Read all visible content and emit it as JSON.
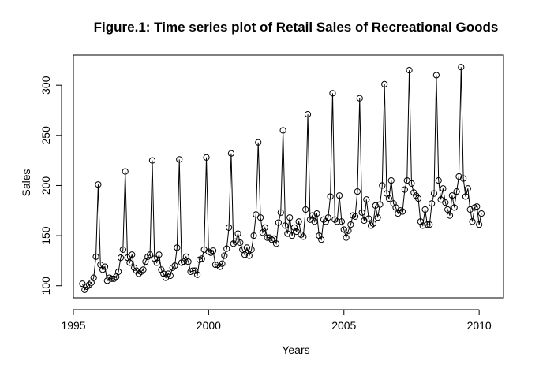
{
  "chart_data": {
    "type": "line",
    "title": "Figure.1: Time series plot of Retail Sales of Recreational Goods",
    "xlabel": "Years",
    "ylabel": "Sales",
    "xlim": [
      1995,
      2010.9
    ],
    "ylim": [
      88,
      330
    ],
    "x_ticks": [
      "1995",
      "2000",
      "2005",
      "2010"
    ],
    "y_ticks": [
      "100",
      "150",
      "200",
      "250",
      "300"
    ],
    "marker": "open-circle",
    "series": [
      {
        "start": 1995.333,
        "frequency": 12,
        "values": [
          102,
          96,
          99,
          101,
          103,
          108,
          129,
          201,
          121,
          116,
          119,
          105,
          108,
          107,
          107,
          109,
          114,
          128,
          136,
          214,
          128,
          123,
          131,
          118,
          115,
          112,
          114,
          116,
          124,
          129,
          131,
          225,
          127,
          123,
          131,
          116,
          112,
          108,
          112,
          110,
          118,
          120,
          138,
          226,
          123,
          124,
          129,
          124,
          114,
          115,
          115,
          111,
          126,
          127,
          136,
          228,
          134,
          133,
          135,
          121,
          121,
          119,
          122,
          130,
          137,
          158,
          232,
          142,
          144,
          152,
          143,
          136,
          131,
          138,
          130,
          136,
          150,
          171,
          243,
          168,
          153,
          158,
          148,
          148,
          146,
          147,
          142,
          163,
          173,
          255,
          160,
          152,
          168,
          150,
          158,
          154,
          164,
          151,
          149,
          176,
          271,
          166,
          170,
          164,
          172,
          150,
          146,
          166,
          164,
          168,
          189,
          292,
          166,
          164,
          190,
          164,
          156,
          148,
          155,
          161,
          170,
          169,
          194,
          287,
          173,
          165,
          186,
          167,
          160,
          162,
          180,
          168,
          181,
          200,
          301,
          192,
          187,
          205,
          182,
          178,
          172,
          175,
          174,
          196,
          205,
          315,
          202,
          193,
          190,
          187,
          164,
          160,
          176,
          161,
          161,
          182,
          192,
          310,
          205,
          186,
          197,
          183,
          176,
          170,
          190,
          178,
          194,
          209,
          318,
          207,
          189,
          197,
          176,
          164,
          178,
          179,
          161,
          172
        ]
      }
    ]
  }
}
